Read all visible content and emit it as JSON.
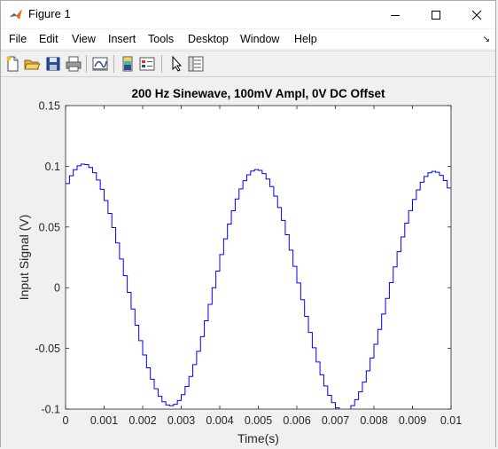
{
  "window": {
    "title": "Figure 1",
    "minimize_icon": "minimize-icon",
    "maximize_icon": "maximize-icon",
    "close_icon": "close-icon"
  },
  "menu": {
    "items": [
      "File",
      "Edit",
      "View",
      "Insert",
      "Tools",
      "Desktop",
      "Window",
      "Help"
    ]
  },
  "toolbar": {
    "icons": [
      "new-figure-icon",
      "open-file-icon",
      "save-icon",
      "print-icon",
      "link-plot-icon",
      "colorbar-icon",
      "legend-icon",
      "pointer-icon",
      "property-inspector-icon"
    ]
  },
  "chart_data": {
    "type": "line",
    "style": "stairs",
    "title": "200 Hz Sinewave, 100mV Ampl, 0V DC Offset",
    "xlabel": "Time(s)",
    "ylabel": "Input Signal (V)",
    "xlim": [
      0,
      0.01
    ],
    "ylim": [
      -0.1,
      0.15
    ],
    "xticks": [
      "0",
      "0.001",
      "0.002",
      "0.003",
      "0.004",
      "0.005",
      "0.006",
      "0.007",
      "0.008",
      "0.009",
      "0.01"
    ],
    "yticks": [
      "-0.1",
      "-0.05",
      "0",
      "0.05",
      "0.1",
      "0.15"
    ],
    "line_color": "#0000ff",
    "grid": false,
    "series": [
      {
        "x": [
          0,
          0.0001,
          0.0002,
          0.0003,
          0.0004,
          0.0005,
          0.0006,
          0.0007,
          0.0008,
          0.0009,
          0.001,
          0.0011,
          0.0012,
          0.0013,
          0.0014,
          0.0015,
          0.0016,
          0.0017,
          0.0018,
          0.0019,
          0.002,
          0.0021,
          0.0022,
          0.0023,
          0.0024,
          0.0025,
          0.0026,
          0.0027,
          0.0028,
          0.0029,
          0.003,
          0.0031,
          0.0032,
          0.0033,
          0.0034,
          0.0035,
          0.0036,
          0.0037,
          0.0038,
          0.0039,
          0.004,
          0.0041,
          0.0042,
          0.0043,
          0.0044,
          0.0045,
          0.0046,
          0.0047,
          0.0048,
          0.0049,
          0.005,
          0.0051,
          0.0052,
          0.0053,
          0.0054,
          0.0055,
          0.0056,
          0.0057,
          0.0058,
          0.0059,
          0.006,
          0.0061,
          0.0062,
          0.0063,
          0.0064,
          0.0065,
          0.0066,
          0.0067,
          0.0068,
          0.0069,
          0.007,
          0.0071,
          0.0072,
          0.0073,
          0.0074,
          0.0075,
          0.0076,
          0.0077,
          0.0078,
          0.0079,
          0.008,
          0.0081,
          0.0082,
          0.0083,
          0.0084,
          0.0085,
          0.0086,
          0.0087,
          0.0088,
          0.0089,
          0.009,
          0.0091,
          0.0092,
          0.0093,
          0.0094,
          0.0095,
          0.0096,
          0.0097,
          0.0098,
          0.0099
        ],
        "y": [
          0.0858,
          0.0922,
          0.0972,
          0.1004,
          0.1018,
          0.1014,
          0.099,
          0.0947,
          0.0887,
          0.081,
          0.0718,
          0.0612,
          0.0495,
          0.0369,
          0.0236,
          0.0099,
          -0.0039,
          -0.0176,
          -0.0309,
          -0.0436,
          -0.0554,
          -0.066,
          -0.0754,
          -0.0833,
          -0.0895,
          -0.094,
          -0.0966,
          -0.0973,
          -0.0961,
          -0.093,
          -0.0881,
          -0.0814,
          -0.0731,
          -0.0634,
          -0.0524,
          -0.0403,
          -0.0273,
          -0.0137,
          0.0,
          0.0137,
          0.0273,
          0.0403,
          0.0524,
          0.0634,
          0.0731,
          0.0814,
          0.0881,
          0.093,
          0.0961,
          0.0973,
          0.0966,
          0.094,
          0.0895,
          0.0833,
          0.0754,
          0.066,
          0.0554,
          0.0436,
          0.0309,
          0.0176,
          0.0039,
          -0.0099,
          -0.0236,
          -0.0369,
          -0.0495,
          -0.0612,
          -0.0718,
          -0.081,
          -0.0887,
          -0.0947,
          -0.099,
          -0.1014,
          -0.1018,
          -0.1004,
          -0.0972,
          -0.0922,
          -0.0858,
          -0.0778,
          -0.0685,
          -0.058,
          -0.0466,
          -0.0344,
          -0.0217,
          -0.0088,
          0.0042,
          0.0171,
          0.0297,
          0.0418,
          0.0531,
          0.0635,
          0.0727,
          0.0806,
          0.0869,
          0.0916,
          0.0946,
          0.0958,
          0.0951,
          0.0925,
          0.0882,
          0.0821
        ]
      }
    ]
  }
}
